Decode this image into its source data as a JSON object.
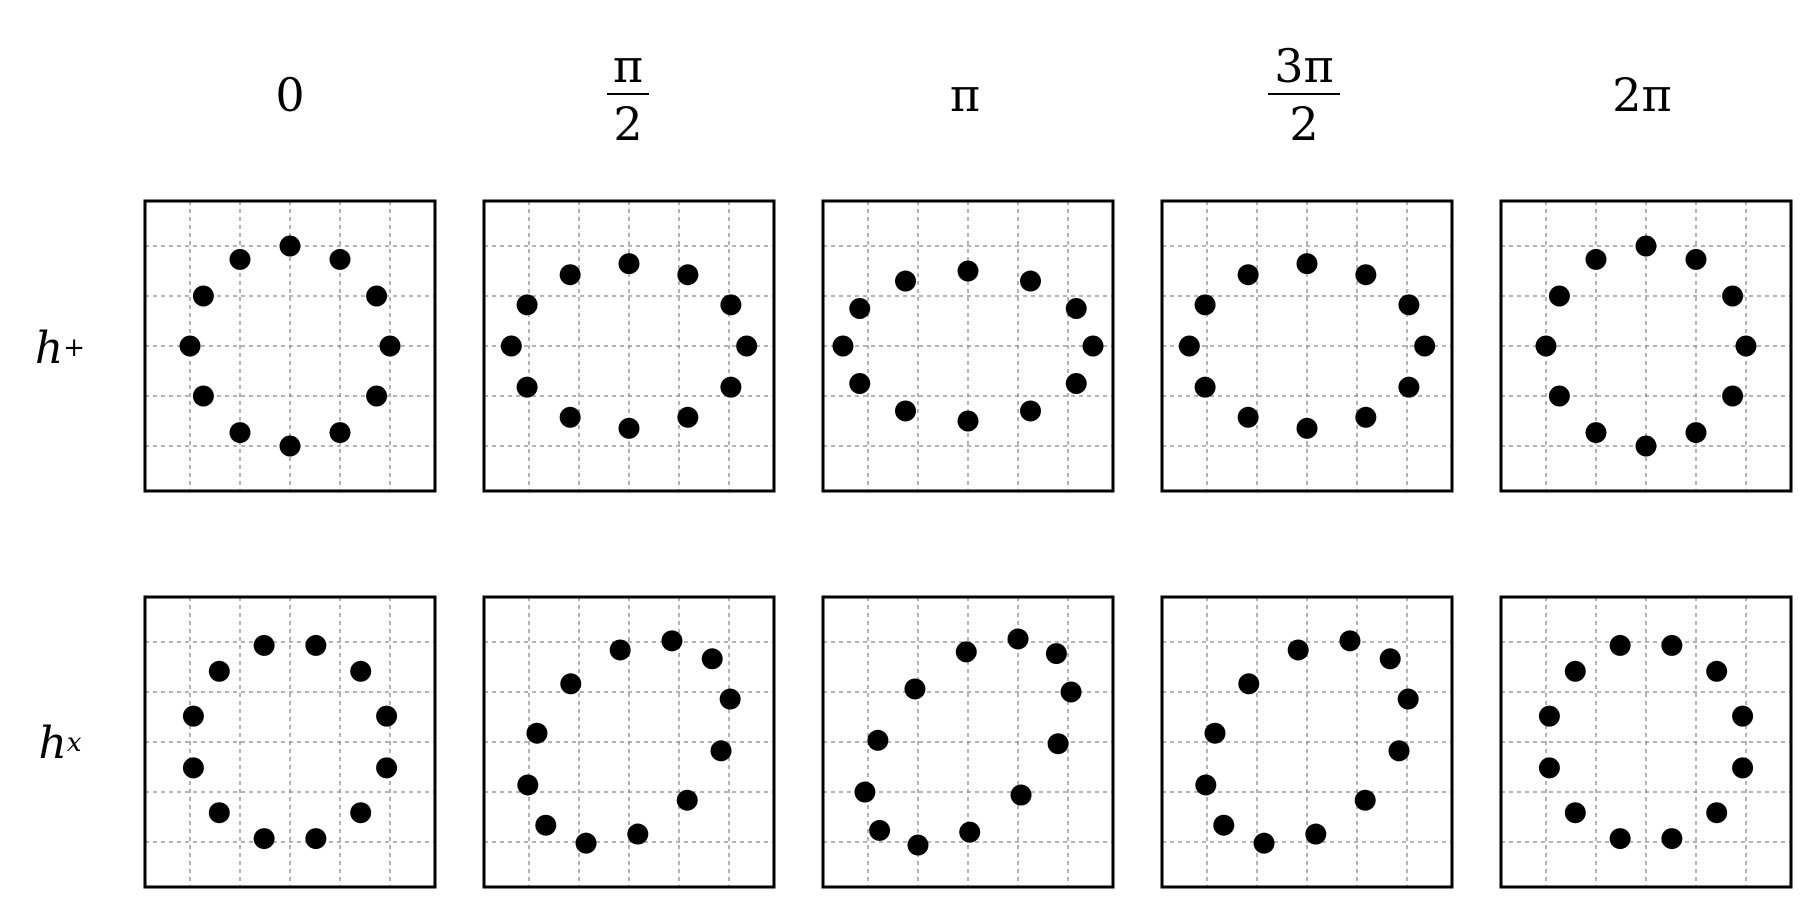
{
  "columns": [
    {
      "id": "c0",
      "type": "plain",
      "text": "0"
    },
    {
      "id": "c1",
      "type": "frac",
      "num": "π",
      "den": "2"
    },
    {
      "id": "c2",
      "type": "plain",
      "text": "π"
    },
    {
      "id": "c3",
      "type": "frac",
      "num": "3π",
      "den": "2"
    },
    {
      "id": "c4",
      "type": "plain",
      "text": "2π"
    }
  ],
  "rows": [
    {
      "id": "plus",
      "base": "h",
      "sub": "+",
      "sub_italic": false,
      "polarization": "plus"
    },
    {
      "id": "cross",
      "base": "h",
      "sub": "x",
      "sub_italic": true,
      "polarization": "cross"
    }
  ],
  "phases_over_pi": [
    0,
    0.5,
    1,
    1.5,
    2
  ],
  "ring": {
    "particles": 12,
    "radius": 1.0,
    "strain_amplitude": 0.25
  },
  "panel": {
    "grid_divisions": 6,
    "frame_color": "#000000",
    "grid_color": "#888888",
    "dot_color": "#000000"
  }
}
